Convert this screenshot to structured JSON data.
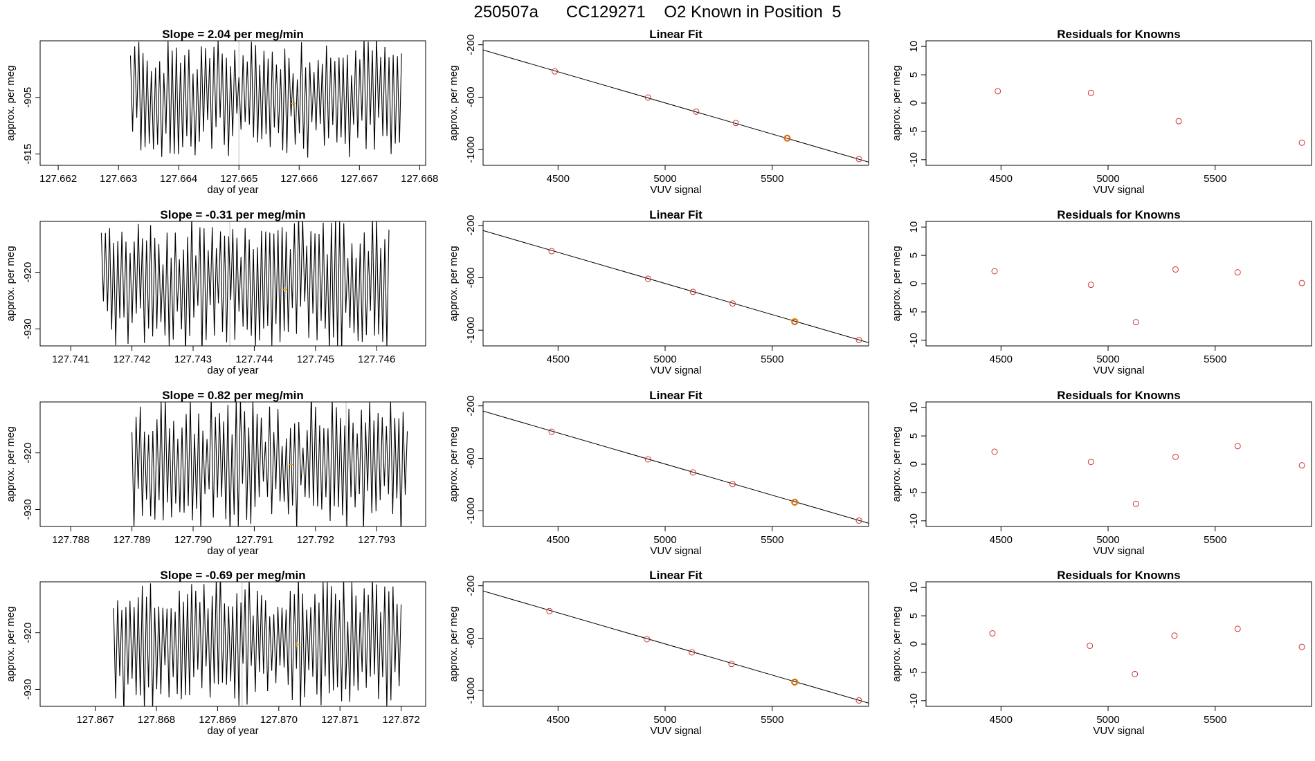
{
  "title": "250507a      CC129271    O2 Known in Position  5",
  "colors": {
    "axis": "#000000",
    "trace": "#000000",
    "point": "#CD3333",
    "highlight": "#E69F00",
    "vline": "#BEBEBE"
  },
  "chart_data": [
    {
      "type": "line",
      "row": 1,
      "title": "Slope =  2.04  per meg/min",
      "xlabel": "day of year",
      "ylabel": "approx. per meg",
      "xlim": [
        127.6617,
        127.6681
      ],
      "ylim": [
        -917,
        -895
      ],
      "xticks": [
        {
          "v": 127.662,
          "label": "127.662"
        },
        {
          "v": 127.663,
          "label": "127.663"
        },
        {
          "v": 127.664,
          "label": "127.664"
        },
        {
          "v": 127.665,
          "label": "127.665"
        },
        {
          "v": 127.666,
          "label": "127.666"
        },
        {
          "v": 127.667,
          "label": "127.667"
        },
        {
          "v": 127.668,
          "label": "127.668"
        }
      ],
      "yticks": [
        {
          "v": -905,
          "label": "-905"
        },
        {
          "v": -915,
          "label": "-915"
        }
      ],
      "trace": {
        "x_start": 127.6632,
        "x_end": 127.6677,
        "center": -905,
        "amp": 9,
        "cycles": 65
      },
      "vline": 127.665,
      "mean_point": {
        "x": 127.6659,
        "y": -906
      }
    },
    {
      "type": "scatter",
      "row": 1,
      "title": "Linear Fit",
      "xlabel": "VUV signal",
      "ylabel": "approx. per meg",
      "xlim": [
        4150,
        5950
      ],
      "ylim": [
        -1120,
        -170
      ],
      "xticks": [
        {
          "v": 4500,
          "label": "4500"
        },
        {
          "v": 5000,
          "label": "5000"
        },
        {
          "v": 5500,
          "label": "5500"
        }
      ],
      "yticks": [
        {
          "v": -200,
          "label": "-200"
        },
        {
          "v": -600,
          "label": "-600"
        },
        {
          "v": -1000,
          "label": "-1000"
        }
      ],
      "line": {
        "x1": 4150,
        "y1": -240,
        "x2": 5950,
        "y2": -1095
      },
      "points": [
        {
          "x": 4485,
          "y": -403
        },
        {
          "x": 4920,
          "y": -603
        },
        {
          "x": 5145,
          "y": -710
        },
        {
          "x": 5330,
          "y": -797
        },
        {
          "x": 5905,
          "y": -1072
        }
      ],
      "known": {
        "x": 5570,
        "y": -913
      }
    },
    {
      "type": "scatter",
      "row": 1,
      "title": "Residuals for Knowns",
      "xlabel": "VUV signal",
      "ylabel": "approx. per meg",
      "xlim": [
        4150,
        5950
      ],
      "ylim": [
        -11,
        11
      ],
      "xticks": [
        {
          "v": 4500,
          "label": "4500"
        },
        {
          "v": 5000,
          "label": "5000"
        },
        {
          "v": 5500,
          "label": "5500"
        }
      ],
      "yticks": [
        {
          "v": 10,
          "label": "10"
        },
        {
          "v": 5,
          "label": "5"
        },
        {
          "v": 0,
          "label": "0"
        },
        {
          "v": -5,
          "label": "-5"
        },
        {
          "v": -10,
          "label": "-10"
        }
      ],
      "points": [
        {
          "x": 4485,
          "y": 2.1
        },
        {
          "x": 4920,
          "y": 1.8
        },
        {
          "x": 5330,
          "y": -3.2
        },
        {
          "x": 5905,
          "y": -7.0
        }
      ]
    },
    {
      "type": "line",
      "row": 2,
      "title": "Slope =  -0.31  per meg/min",
      "xlabel": "day of year",
      "ylabel": "approx. per meg",
      "xlim": [
        127.7405,
        127.7468
      ],
      "ylim": [
        -933,
        -911
      ],
      "xticks": [
        {
          "v": 127.741,
          "label": "127.741"
        },
        {
          "v": 127.742,
          "label": "127.742"
        },
        {
          "v": 127.743,
          "label": "127.743"
        },
        {
          "v": 127.744,
          "label": "127.744"
        },
        {
          "v": 127.745,
          "label": "127.745"
        },
        {
          "v": 127.746,
          "label": "127.746"
        }
      ],
      "yticks": [
        {
          "v": -920,
          "label": "-920"
        },
        {
          "v": -930,
          "label": "-930"
        }
      ],
      "trace": {
        "x_start": 127.7415,
        "x_end": 127.7462,
        "center": -922,
        "amp": 10,
        "cycles": 70
      },
      "vline": 127.7436,
      "mean_point": {
        "x": 127.7445,
        "y": -923
      }
    },
    {
      "type": "scatter",
      "row": 2,
      "title": "Linear Fit",
      "xlabel": "VUV signal",
      "ylabel": "approx. per meg",
      "xlim": [
        4150,
        5950
      ],
      "ylim": [
        -1120,
        -170
      ],
      "xticks": [
        {
          "v": 4500,
          "label": "4500"
        },
        {
          "v": 5000,
          "label": "5000"
        },
        {
          "v": 5500,
          "label": "5500"
        }
      ],
      "yticks": [
        {
          "v": -200,
          "label": "-200"
        },
        {
          "v": -600,
          "label": "-600"
        },
        {
          "v": -1000,
          "label": "-1000"
        }
      ],
      "line": {
        "x1": 4150,
        "y1": -240,
        "x2": 5950,
        "y2": -1095
      },
      "points": [
        {
          "x": 4470,
          "y": -397
        },
        {
          "x": 4920,
          "y": -608
        },
        {
          "x": 5130,
          "y": -708
        },
        {
          "x": 5315,
          "y": -797
        },
        {
          "x": 5905,
          "y": -1075
        }
      ],
      "known": {
        "x": 5605,
        "y": -935
      }
    },
    {
      "type": "scatter",
      "row": 2,
      "title": "Residuals for Knowns",
      "xlabel": "VUV signal",
      "ylabel": "approx. per meg",
      "xlim": [
        4150,
        5950
      ],
      "ylim": [
        -11,
        11
      ],
      "xticks": [
        {
          "v": 4500,
          "label": "4500"
        },
        {
          "v": 5000,
          "label": "5000"
        },
        {
          "v": 5500,
          "label": "5500"
        }
      ],
      "yticks": [
        {
          "v": 10,
          "label": "10"
        },
        {
          "v": 5,
          "label": "5"
        },
        {
          "v": 0,
          "label": "0"
        },
        {
          "v": -5,
          "label": "-5"
        },
        {
          "v": -10,
          "label": "-10"
        }
      ],
      "points": [
        {
          "x": 4470,
          "y": 2.2
        },
        {
          "x": 4920,
          "y": -0.2
        },
        {
          "x": 5130,
          "y": -6.8
        },
        {
          "x": 5315,
          "y": 2.5
        },
        {
          "x": 5605,
          "y": 2.0
        },
        {
          "x": 5905,
          "y": 0.1
        }
      ]
    },
    {
      "type": "line",
      "row": 3,
      "title": "Slope =  0.82  per meg/min",
      "xlabel": "day of year",
      "ylabel": "approx. per meg",
      "xlim": [
        127.7875,
        127.7938
      ],
      "ylim": [
        -933,
        -911
      ],
      "xticks": [
        {
          "v": 127.788,
          "label": "127.788"
        },
        {
          "v": 127.789,
          "label": "127.789"
        },
        {
          "v": 127.79,
          "label": "127.790"
        },
        {
          "v": 127.791,
          "label": "127.791"
        },
        {
          "v": 127.792,
          "label": "127.792"
        },
        {
          "v": 127.793,
          "label": "127.793"
        }
      ],
      "yticks": [
        {
          "v": -920,
          "label": "-920"
        },
        {
          "v": -930,
          "label": "-930"
        }
      ],
      "trace": {
        "x_start": 127.789,
        "x_end": 127.7935,
        "center": -922,
        "amp": 10,
        "cycles": 66
      },
      "vline": 127.7925,
      "mean_point": {
        "x": 127.7916,
        "y": -922
      }
    },
    {
      "type": "scatter",
      "row": 3,
      "title": "Linear Fit",
      "xlabel": "VUV signal",
      "ylabel": "approx. per meg",
      "xlim": [
        4150,
        5950
      ],
      "ylim": [
        -1120,
        -170
      ],
      "xticks": [
        {
          "v": 4500,
          "label": "4500"
        },
        {
          "v": 5000,
          "label": "5000"
        },
        {
          "v": 5500,
          "label": "5500"
        }
      ],
      "yticks": [
        {
          "v": -200,
          "label": "-200"
        },
        {
          "v": -600,
          "label": "-600"
        },
        {
          "v": -1000,
          "label": "-1000"
        }
      ],
      "line": {
        "x1": 4150,
        "y1": -240,
        "x2": 5950,
        "y2": -1095
      },
      "points": [
        {
          "x": 4470,
          "y": -397
        },
        {
          "x": 4920,
          "y": -608
        },
        {
          "x": 5130,
          "y": -708
        },
        {
          "x": 5315,
          "y": -797
        },
        {
          "x": 5905,
          "y": -1075
        }
      ],
      "known": {
        "x": 5605,
        "y": -935
      }
    },
    {
      "type": "scatter",
      "row": 3,
      "title": "Residuals for Knowns",
      "xlabel": "VUV signal",
      "ylabel": "approx. per meg",
      "xlim": [
        4150,
        5950
      ],
      "ylim": [
        -11,
        11
      ],
      "xticks": [
        {
          "v": 4500,
          "label": "4500"
        },
        {
          "v": 5000,
          "label": "5000"
        },
        {
          "v": 5500,
          "label": "5500"
        }
      ],
      "yticks": [
        {
          "v": 10,
          "label": "10"
        },
        {
          "v": 5,
          "label": "5"
        },
        {
          "v": 0,
          "label": "0"
        },
        {
          "v": -5,
          "label": "-5"
        },
        {
          "v": -10,
          "label": "-10"
        }
      ],
      "points": [
        {
          "x": 4470,
          "y": 2.2
        },
        {
          "x": 4920,
          "y": 0.4
        },
        {
          "x": 5130,
          "y": -7.0
        },
        {
          "x": 5315,
          "y": 1.3
        },
        {
          "x": 5605,
          "y": 3.2
        },
        {
          "x": 5905,
          "y": -0.2
        }
      ]
    },
    {
      "type": "line",
      "row": 4,
      "title": "Slope =  -0.69  per meg/min",
      "xlabel": "day of year",
      "ylabel": "approx. per meg",
      "xlim": [
        127.8661,
        127.8724
      ],
      "ylim": [
        -933,
        -911
      ],
      "xticks": [
        {
          "v": 127.867,
          "label": "127.867"
        },
        {
          "v": 127.868,
          "label": "127.868"
        },
        {
          "v": 127.869,
          "label": "127.869"
        },
        {
          "v": 127.87,
          "label": "127.870"
        },
        {
          "v": 127.871,
          "label": "127.871"
        },
        {
          "v": 127.872,
          "label": "127.872"
        }
      ],
      "yticks": [
        {
          "v": -920,
          "label": "-920"
        },
        {
          "v": -930,
          "label": "-930"
        }
      ],
      "trace": {
        "x_start": 127.8673,
        "x_end": 127.872,
        "center": -922,
        "amp": 10,
        "cycles": 70
      },
      "vline": 127.8694,
      "mean_point": {
        "x": 127.8703,
        "y": -922
      }
    },
    {
      "type": "scatter",
      "row": 4,
      "title": "Linear Fit",
      "xlabel": "VUV signal",
      "ylabel": "approx. per meg",
      "xlim": [
        4150,
        5950
      ],
      "ylim": [
        -1120,
        -170
      ],
      "xticks": [
        {
          "v": 4500,
          "label": "4500"
        },
        {
          "v": 5000,
          "label": "5000"
        },
        {
          "v": 5500,
          "label": "5500"
        }
      ],
      "yticks": [
        {
          "v": -200,
          "label": "-200"
        },
        {
          "v": -600,
          "label": "-600"
        },
        {
          "v": -1000,
          "label": "-1000"
        }
      ],
      "line": {
        "x1": 4150,
        "y1": -240,
        "x2": 5950,
        "y2": -1095
      },
      "points": [
        {
          "x": 4460,
          "y": -393
        },
        {
          "x": 4915,
          "y": -608
        },
        {
          "x": 5125,
          "y": -708
        },
        {
          "x": 5310,
          "y": -797
        },
        {
          "x": 5905,
          "y": -1075
        }
      ],
      "known": {
        "x": 5605,
        "y": -935
      }
    },
    {
      "type": "scatter",
      "row": 4,
      "title": "Residuals for Knowns",
      "xlabel": "VUV signal",
      "ylabel": "approx. per meg",
      "xlim": [
        4150,
        5950
      ],
      "ylim": [
        -11,
        11
      ],
      "xticks": [
        {
          "v": 4500,
          "label": "4500"
        },
        {
          "v": 5000,
          "label": "5000"
        },
        {
          "v": 5500,
          "label": "5500"
        }
      ],
      "yticks": [
        {
          "v": 10,
          "label": "10"
        },
        {
          "v": 5,
          "label": "5"
        },
        {
          "v": 0,
          "label": "0"
        },
        {
          "v": -5,
          "label": "-5"
        },
        {
          "v": -10,
          "label": "-10"
        }
      ],
      "points": [
        {
          "x": 4460,
          "y": 1.9
        },
        {
          "x": 4915,
          "y": -0.3
        },
        {
          "x": 5125,
          "y": -5.3
        },
        {
          "x": 5310,
          "y": 1.5
        },
        {
          "x": 5605,
          "y": 2.7
        },
        {
          "x": 5905,
          "y": -0.5
        }
      ]
    }
  ]
}
